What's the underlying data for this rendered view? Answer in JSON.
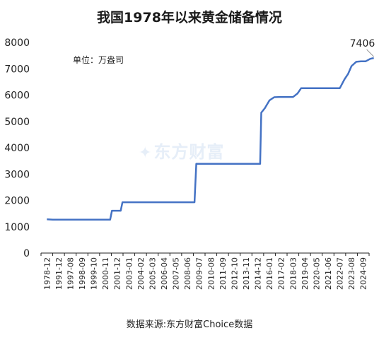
{
  "title": "我国1978年以来黄金储备情况",
  "unit": "单位：万盎司",
  "source": "数据来源:东方财富Choice数据",
  "watermark": "东方财富",
  "colors": {
    "line": "#4472c4",
    "axis": "#222222",
    "watermark": "#e6eef8"
  },
  "chart_data": {
    "type": "line",
    "title": "我国1978年以来黄金储备情况",
    "unit_label": "单位：万盎司",
    "ylim": [
      0,
      8000
    ],
    "y_ticks": [
      0,
      1000,
      2000,
      3000,
      4000,
      5000,
      6000,
      7000,
      8000
    ],
    "grid": false,
    "x_categories": [
      "1978-12",
      "1991-12",
      "1997-08",
      "1998-09",
      "1999-10",
      "2000-11",
      "2001-12",
      "2003-01",
      "2004-02",
      "2005-03",
      "2006-04",
      "2007-05",
      "2008-06",
      "2009-07",
      "2010-08",
      "2011-09",
      "2012-10",
      "2013-11",
      "2014-12",
      "2016-01",
      "2017-02",
      "2018-03",
      "2019-04",
      "2020-05",
      "2021-06",
      "2022-07",
      "2023-08",
      "2024-09"
    ],
    "series": [
      {
        "x": [
          0,
          0.5,
          1,
          2,
          3,
          4,
          5,
          5.4,
          5.55,
          6,
          6.3,
          6.45,
          7,
          8,
          9,
          10,
          11,
          12,
          12.6,
          12.75,
          13,
          14,
          15,
          16,
          17,
          18,
          18.2,
          18.3,
          18.6,
          19,
          19.4,
          19.8,
          20,
          21,
          21.4,
          21.7,
          22,
          23,
          24,
          25,
          25.4,
          25.7,
          26,
          26.4,
          26.8,
          27.2,
          27.6,
          27.9
        ],
        "values": [
          1280,
          1267,
          1267,
          1267,
          1267,
          1267,
          1267,
          1267,
          1608,
          1608,
          1608,
          1929,
          1929,
          1929,
          1929,
          1929,
          1929,
          1929,
          1929,
          3389,
          3389,
          3389,
          3389,
          3389,
          3389,
          3389,
          3389,
          5332,
          5500,
          5800,
          5920,
          5924,
          5924,
          5924,
          6064,
          6264,
          6264,
          6264,
          6264,
          6264,
          6600,
          6800,
          7100,
          7264,
          7280,
          7280,
          7377,
          7406
        ]
      }
    ],
    "annotations": [
      {
        "text": "7406",
        "x": 27.9,
        "y": 7406
      }
    ]
  }
}
